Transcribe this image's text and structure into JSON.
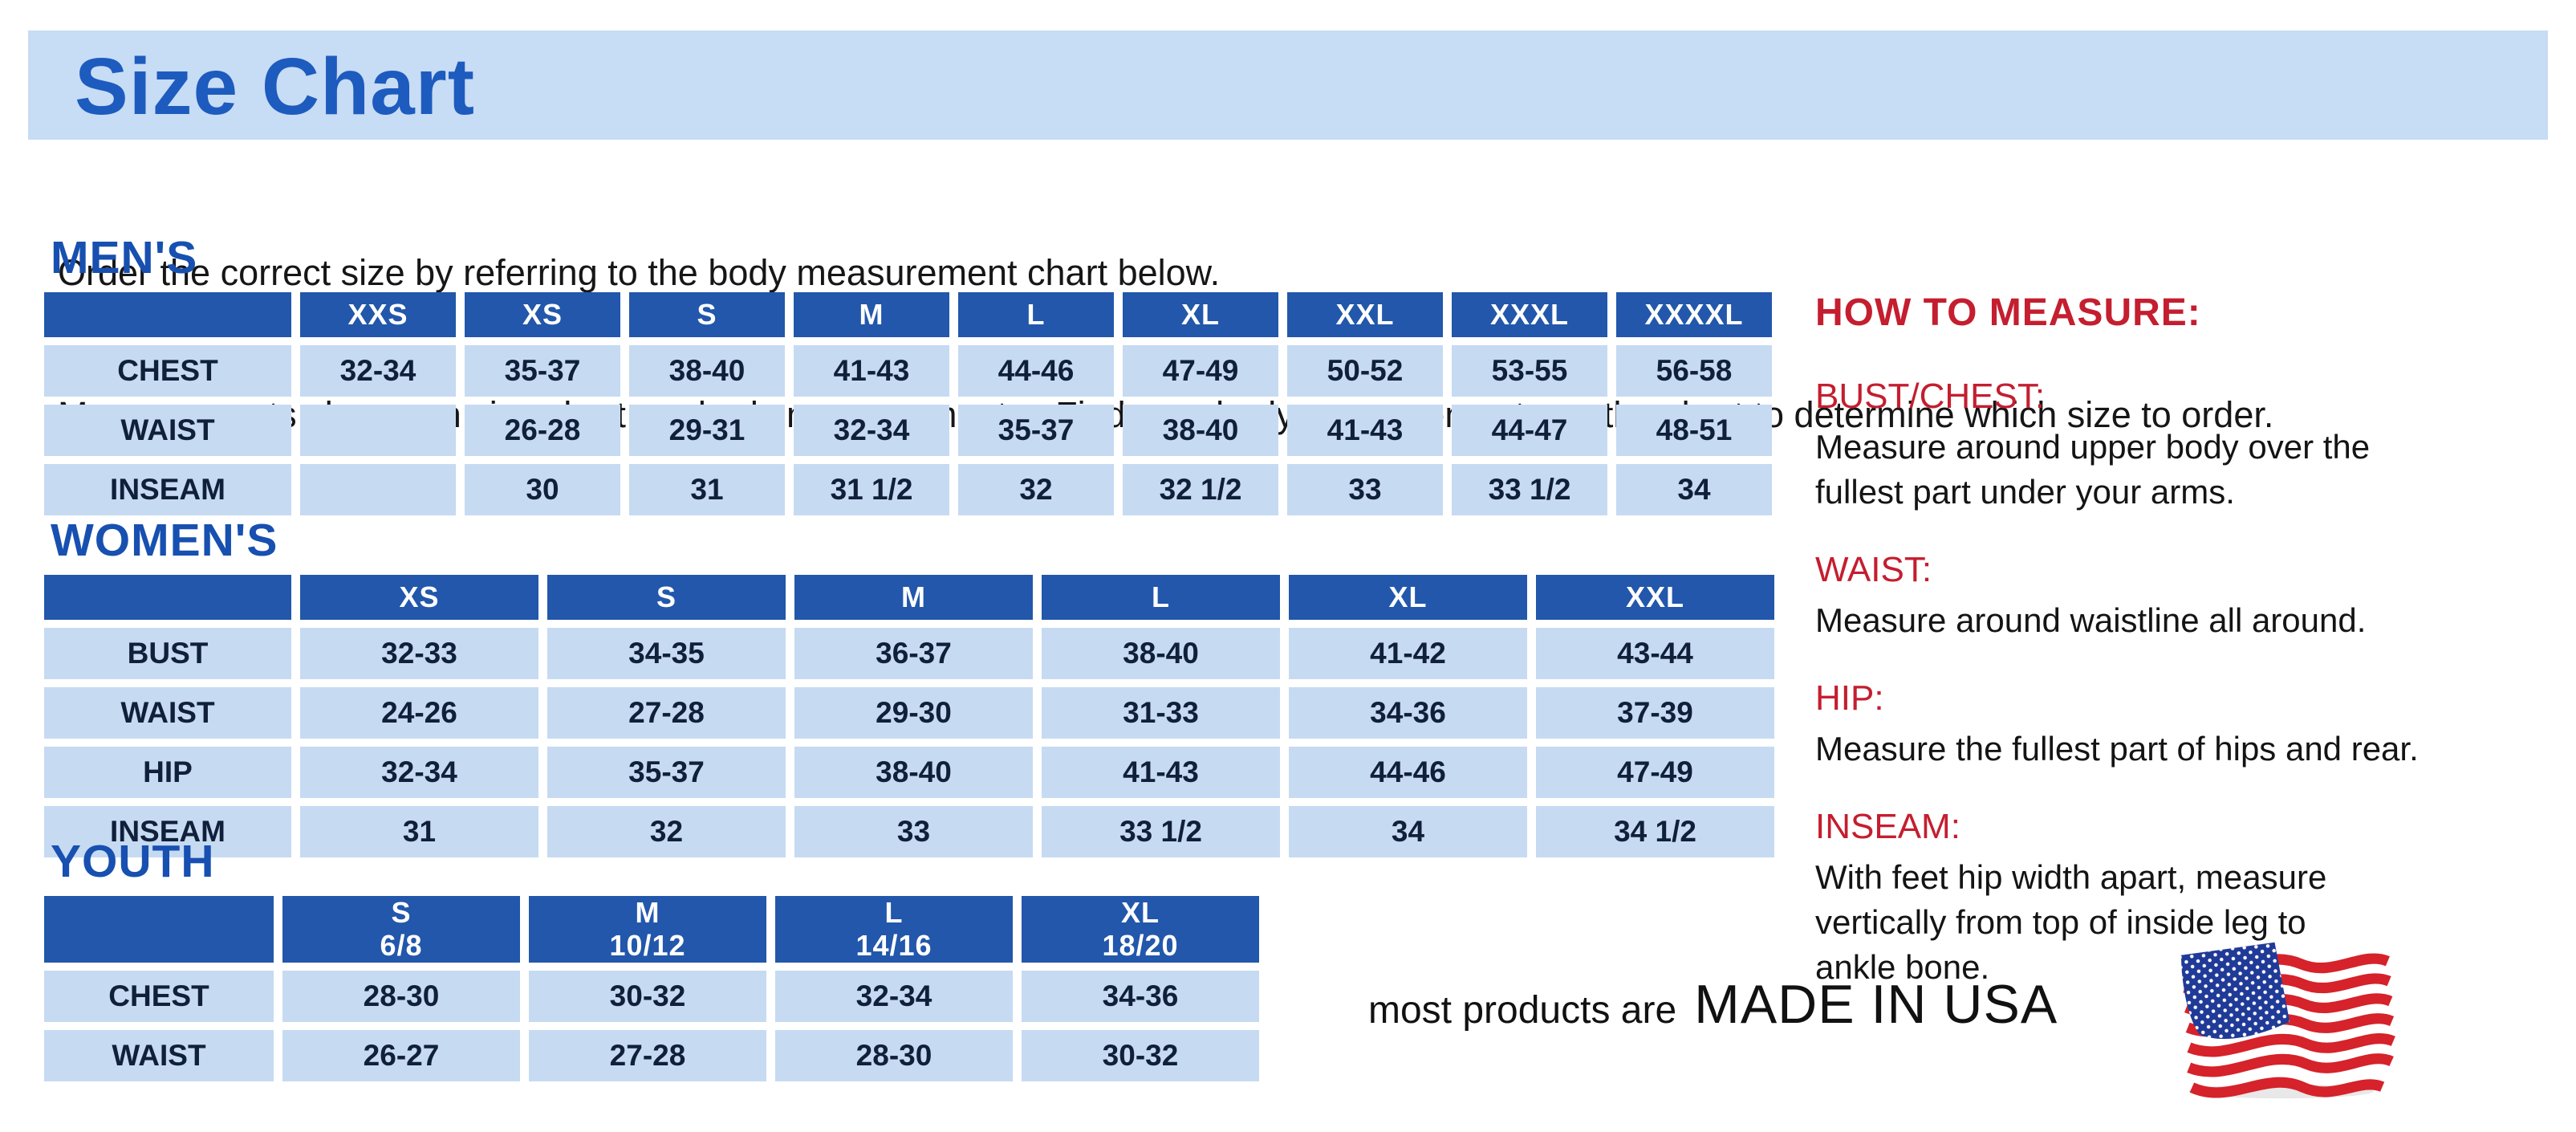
{
  "page": {
    "title": "Size Chart",
    "intro_line1": "Order the correct size by referring to the body measurement chart below.",
    "intro_line2": "Measurements shown on size chart are body measurements.  Find your body measurements on the chart to determine which size to order."
  },
  "colors": {
    "banner_bg": "#c7dcf5",
    "heading_blue": "#1a55b8",
    "table_header_blue": "#2257ab",
    "table_cell_blue": "#c6daf2",
    "accent_red": "#c41e2f",
    "flag_red": "#d6222a",
    "flag_navy": "#203a97"
  },
  "tables": [
    {
      "id": "mens",
      "section_label": "MEN'S",
      "columns": [
        {
          "size": "XXS"
        },
        {
          "size": "XS"
        },
        {
          "size": "S"
        },
        {
          "size": "M"
        },
        {
          "size": "L"
        },
        {
          "size": "XL"
        },
        {
          "size": "XXL"
        },
        {
          "size": "XXXL"
        },
        {
          "size": "XXXXL"
        }
      ],
      "rows": [
        {
          "label": "CHEST",
          "values": [
            "32-34",
            "35-37",
            "38-40",
            "41-43",
            "44-46",
            "47-49",
            "50-52",
            "53-55",
            "56-58"
          ]
        },
        {
          "label": "WAIST",
          "values": [
            "",
            "26-28",
            "29-31",
            "32-34",
            "35-37",
            "38-40",
            "41-43",
            "44-47",
            "48-51"
          ]
        },
        {
          "label": "INSEAM",
          "values": [
            "",
            "30",
            "31",
            "31 1/2",
            "32",
            "32 1/2",
            "33",
            "33 1/2",
            "34"
          ]
        }
      ]
    },
    {
      "id": "womens",
      "section_label": "WOMEN'S",
      "columns": [
        {
          "size": "XS"
        },
        {
          "size": "S"
        },
        {
          "size": "M"
        },
        {
          "size": "L"
        },
        {
          "size": "XL"
        },
        {
          "size": "XXL"
        }
      ],
      "rows": [
        {
          "label": "BUST",
          "values": [
            "32-33",
            "34-35",
            "36-37",
            "38-40",
            "41-42",
            "43-44"
          ]
        },
        {
          "label": "WAIST",
          "values": [
            "24-26",
            "27-28",
            "29-30",
            "31-33",
            "34-36",
            "37-39"
          ]
        },
        {
          "label": "HIP",
          "values": [
            "32-34",
            "35-37",
            "38-40",
            "41-43",
            "44-46",
            "47-49"
          ]
        },
        {
          "label": "INSEAM",
          "values": [
            "31",
            "32",
            "33",
            "33 1/2",
            "34",
            "34 1/2"
          ]
        }
      ]
    },
    {
      "id": "youth",
      "section_label": "YOUTH",
      "columns": [
        {
          "size": "S",
          "range": "6/8"
        },
        {
          "size": "M",
          "range": "10/12"
        },
        {
          "size": "L",
          "range": "14/16"
        },
        {
          "size": "XL",
          "range": "18/20"
        }
      ],
      "rows": [
        {
          "label": "CHEST",
          "values": [
            "28-30",
            "30-32",
            "32-34",
            "34-36"
          ]
        },
        {
          "label": "WAIST",
          "values": [
            "26-27",
            "27-28",
            "28-30",
            "30-32"
          ]
        }
      ]
    }
  ],
  "how_to_measure": {
    "title": "HOW TO MEASURE:",
    "items": [
      {
        "heading": "BUST/CHEST:",
        "text": "Measure around upper body over the\nfullest part under your arms."
      },
      {
        "heading": "WAIST:",
        "text": "Measure around waistline all around."
      },
      {
        "heading": "HIP:",
        "text": "Measure the fullest part of hips and rear."
      },
      {
        "heading": "INSEAM:",
        "text": "With feet hip width apart, measure\nvertically from top of inside leg to\nankle bone."
      }
    ]
  },
  "footer": {
    "prefix": "most products are",
    "emphasis": "MADE IN USA",
    "flag_icon": "us-flag-icon"
  }
}
